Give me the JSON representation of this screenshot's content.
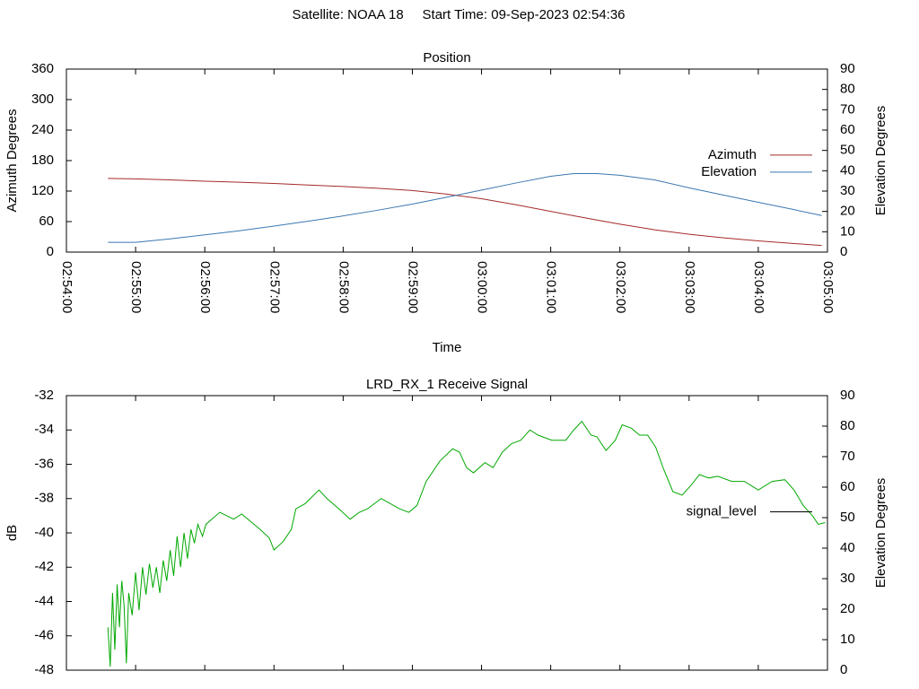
{
  "title": "Satellite: NOAA 18     Start Time: 09-Sep-2023 02:54:36",
  "chart_data": [
    {
      "type": "line",
      "title": "Position",
      "xlabel": "Time",
      "ylabel": "Azimuth Degrees",
      "y2label": "Elevation Degrees",
      "xlim": [
        "02:54:00",
        "03:05:00"
      ],
      "xticks": [
        "02:54:00",
        "02:55:00",
        "02:56:00",
        "02:57:00",
        "02:58:00",
        "02:59:00",
        "03:00:00",
        "03:01:00",
        "03:02:00",
        "03:03:00",
        "03:04:00",
        "03:05:00"
      ],
      "xtick_labels": true,
      "ylim": [
        0,
        360
      ],
      "yticks": [
        0,
        60,
        120,
        180,
        240,
        300,
        360
      ],
      "y2lim": [
        0,
        90
      ],
      "y2ticks": [
        0,
        10,
        20,
        30,
        40,
        50,
        60,
        70,
        80,
        90
      ],
      "legend": "right",
      "x": [
        "02:54:36",
        "02:55:00",
        "02:55:30",
        "02:56:00",
        "02:56:30",
        "02:57:00",
        "02:57:30",
        "02:58:00",
        "02:58:30",
        "02:59:00",
        "02:59:30",
        "03:00:00",
        "03:00:30",
        "03:01:00",
        "03:01:20",
        "03:01:40",
        "03:02:00",
        "03:02:30",
        "03:03:00",
        "03:03:30",
        "03:04:00",
        "03:04:30",
        "03:04:55"
      ],
      "series": [
        {
          "name": "Azimuth",
          "color": "#a52a2a",
          "values": [
            145,
            144,
            142,
            139.5,
            137.5,
            135,
            132,
            129,
            125.5,
            121,
            114,
            105,
            93,
            80,
            71.5,
            63,
            55,
            44,
            35,
            28,
            22,
            17,
            13
          ]
        },
        {
          "name": "Elevation",
          "color": "#3a78b0",
          "axis": "y2",
          "values": [
            4.8,
            4.8,
            6.5,
            8.5,
            10.5,
            12.8,
            15.2,
            17.8,
            20.6,
            23.6,
            27,
            30.5,
            34,
            37.3,
            38.6,
            38.6,
            37.8,
            35.5,
            31.6,
            28,
            24.5,
            21,
            18
          ]
        }
      ]
    },
    {
      "type": "line",
      "title": "LRD_RX_1 Receive Signal",
      "ylabel": "dB",
      "y2label": "Elevation Degrees",
      "xlim": [
        "02:54:00",
        "03:05:00"
      ],
      "xticks": [
        "02:54:00",
        "02:55:00",
        "02:56:00",
        "02:57:00",
        "02:58:00",
        "02:59:00",
        "03:00:00",
        "03:01:00",
        "03:02:00",
        "03:03:00",
        "03:04:00",
        "03:05:00"
      ],
      "xtick_labels": false,
      "ylim": [
        -48,
        -32
      ],
      "yticks": [
        -48,
        -46,
        -44,
        -42,
        -40,
        -38,
        -36,
        -34,
        -32
      ],
      "y2lim": [
        0,
        90
      ],
      "y2ticks": [
        0,
        10,
        20,
        30,
        40,
        50,
        60,
        70,
        80,
        90
      ],
      "legend": "right",
      "x": [
        "02:54:36",
        "02:54:38",
        "02:54:40",
        "02:54:42",
        "02:54:44",
        "02:54:46",
        "02:54:48",
        "02:54:50",
        "02:54:52",
        "02:54:54",
        "02:54:57",
        "02:55:00",
        "02:55:03",
        "02:55:06",
        "02:55:09",
        "02:55:12",
        "02:55:15",
        "02:55:18",
        "02:55:21",
        "02:55:24",
        "02:55:27",
        "02:55:30",
        "02:55:33",
        "02:55:36",
        "02:55:39",
        "02:55:42",
        "02:55:45",
        "02:55:48",
        "02:55:51",
        "02:55:54",
        "02:55:58",
        "02:56:01",
        "02:56:13",
        "02:56:25",
        "02:56:32",
        "02:56:48",
        "02:56:56",
        "02:57:00",
        "02:57:08",
        "02:57:15",
        "02:57:19",
        "02:57:27",
        "02:57:39",
        "02:57:46",
        "02:57:58",
        "02:58:06",
        "02:58:14",
        "02:58:21",
        "02:58:33",
        "02:58:41",
        "02:58:49",
        "02:58:57",
        "02:59:04",
        "02:59:12",
        "02:59:24",
        "02:59:35",
        "02:59:41",
        "02:59:47",
        "02:59:53",
        "03:00:03",
        "03:00:10",
        "03:00:18",
        "03:00:26",
        "03:00:34",
        "03:00:42",
        "03:00:49",
        "03:01:01",
        "03:01:13",
        "03:01:20",
        "03:01:27",
        "03:01:35",
        "03:01:40",
        "03:01:48",
        "03:01:56",
        "03:02:02",
        "03:02:10",
        "03:02:17",
        "03:02:24",
        "03:02:31",
        "03:02:38",
        "03:02:46",
        "03:02:54",
        "03:03:02",
        "03:03:09",
        "03:03:17",
        "03:03:25",
        "03:03:37",
        "03:03:48",
        "03:04:00",
        "03:04:12",
        "03:04:23",
        "03:04:31",
        "03:04:39",
        "03:04:47",
        "03:04:52",
        "03:04:58"
      ],
      "series": [
        {
          "name": "signal_level",
          "color": "#00a800",
          "legend_color": "#000000",
          "values": [
            -45.5,
            -47.8,
            -43.5,
            -46.8,
            -43.0,
            -45.5,
            -42.8,
            -44.2,
            -47.6,
            -43.5,
            -44.8,
            -42.3,
            -44.5,
            -42.0,
            -43.6,
            -41.8,
            -43.2,
            -42.0,
            -43.5,
            -41.6,
            -42.8,
            -41.0,
            -42.5,
            -40.2,
            -42.0,
            -40.0,
            -41.5,
            -39.8,
            -40.6,
            -39.5,
            -40.2,
            -39.5,
            -38.8,
            -39.2,
            -38.9,
            -39.8,
            -40.3,
            -41.0,
            -40.5,
            -39.8,
            -38.6,
            -38.3,
            -37.5,
            -38.0,
            -38.7,
            -39.2,
            -38.8,
            -38.6,
            -38.0,
            -38.3,
            -38.6,
            -38.8,
            -38.4,
            -37.0,
            -35.8,
            -35.1,
            -35.3,
            -36.2,
            -36.5,
            -35.9,
            -36.2,
            -35.3,
            -34.8,
            -34.6,
            -34.0,
            -34.3,
            -34.6,
            -34.6,
            -34.0,
            -33.5,
            -34.3,
            -34.4,
            -35.2,
            -34.6,
            -33.7,
            -33.9,
            -34.3,
            -34.3,
            -35.0,
            -36.3,
            -37.6,
            -37.8,
            -37.2,
            -36.6,
            -36.8,
            -36.7,
            -37.0,
            -37.0,
            -37.5,
            -37.0,
            -36.9,
            -37.5,
            -38.4,
            -39.0,
            -39.5,
            -39.4
          ]
        }
      ]
    }
  ]
}
